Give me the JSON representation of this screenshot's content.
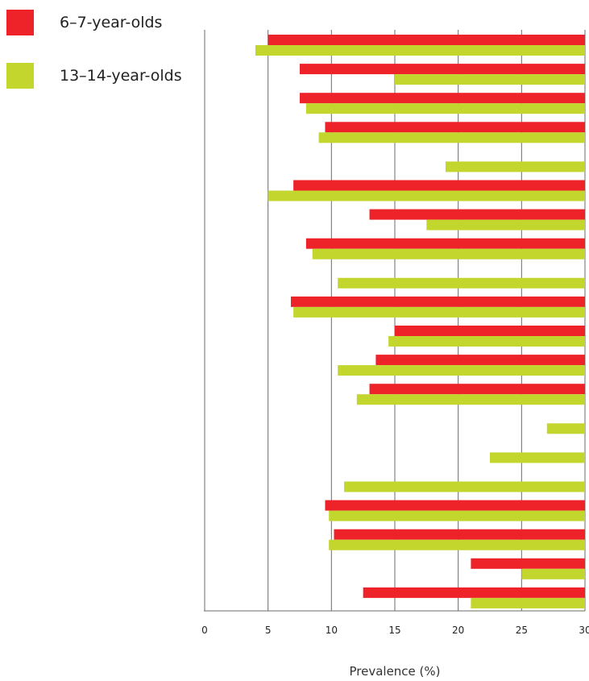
{
  "chart_data": {
    "type": "bar",
    "orientation": "horizontal",
    "title": "",
    "xlabel": "Prevalence (%)",
    "ylabel": "",
    "xlim": [
      0,
      30
    ],
    "xticks": [
      "0",
      "5",
      "10",
      "15",
      "20",
      "25",
      "30"
    ],
    "grid": true,
    "legend_position": "top-left",
    "categories": [
      "",
      "",
      "",
      "",
      "",
      "",
      "",
      "",
      "",
      "",
      "",
      "",
      "",
      "",
      "",
      "",
      "",
      "",
      "",
      ""
    ],
    "series": [
      {
        "name": "6–7-year-olds",
        "color": "#ee2329",
        "values": [
          5,
          7.5,
          7.5,
          9.5,
          null,
          7,
          13,
          8,
          null,
          6.8,
          15,
          13.5,
          13,
          null,
          null,
          null,
          9.5,
          10.2,
          21,
          12.5
        ]
      },
      {
        "name": "13–14-year-olds",
        "color": "#c2d62e",
        "values": [
          4,
          15,
          8,
          9,
          19,
          5,
          17.5,
          8.5,
          10.5,
          7,
          14.5,
          10.5,
          12,
          27,
          22.5,
          11,
          9.8,
          9.8,
          25,
          21
        ]
      }
    ]
  }
}
